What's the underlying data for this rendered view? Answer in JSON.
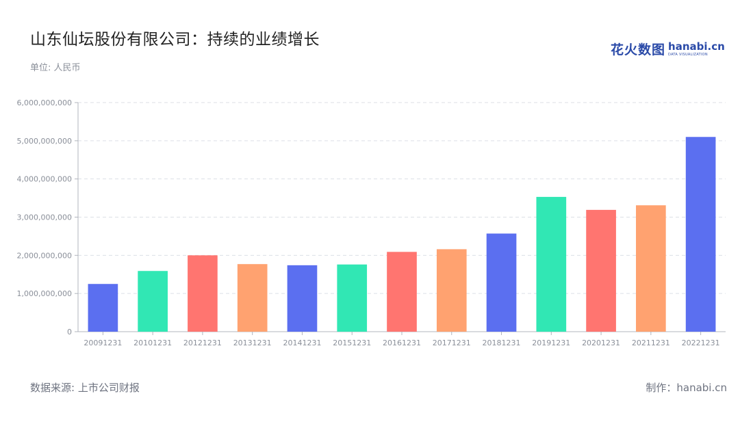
{
  "header": {
    "title": "山东仙坛股份有限公司：持续的业绩增长",
    "unit": "单位: 人民币"
  },
  "logo": {
    "cn": "花火数图",
    "en": "hanabi.cn",
    "en_sub": "DATA VISUALIZATION"
  },
  "footer": {
    "source": "数据来源: 上市公司财报",
    "maker": "制作：hanabi.cn"
  },
  "chart_data": {
    "type": "bar",
    "title": "山东仙坛股份有限公司：持续的业绩增长",
    "ylabel": "",
    "xlabel": "",
    "ylim": [
      0,
      6000000000
    ],
    "yticks": [
      0,
      1000000000,
      2000000000,
      3000000000,
      4000000000,
      5000000000,
      6000000000
    ],
    "ytick_labels": [
      "0",
      "1,000,000,000",
      "2,000,000,000",
      "3,000,000,000",
      "4,000,000,000",
      "5,000,000,000",
      "6,000,000,000"
    ],
    "categories": [
      "20091231",
      "20101231",
      "20121231",
      "20131231",
      "20141231",
      "20151231",
      "20161231",
      "20171231",
      "20181231",
      "20191231",
      "20201231",
      "20211231",
      "20221231"
    ],
    "values": [
      1250000000,
      1590000000,
      2000000000,
      1770000000,
      1740000000,
      1760000000,
      2090000000,
      2160000000,
      2570000000,
      3530000000,
      3190000000,
      3310000000,
      5100000000
    ],
    "colors": [
      "#5b6ff0",
      "#31e7b4",
      "#ff7570",
      "#ffa270"
    ],
    "grid": true,
    "legend": "none"
  }
}
